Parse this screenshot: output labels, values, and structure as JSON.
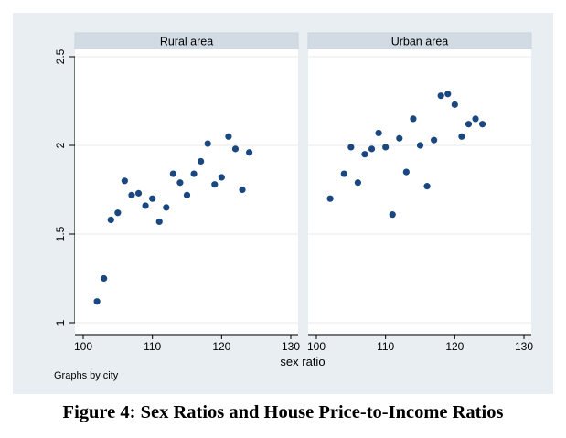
{
  "chart_data": {
    "type": "scatter",
    "xlabel": "sex ratio",
    "note": "Graphs by city",
    "xlim": [
      100,
      130
    ],
    "ylim": [
      1,
      2.5
    ],
    "x_ticks": [
      100,
      110,
      120,
      130
    ],
    "y_ticks": [
      1,
      1.5,
      2,
      2.5
    ],
    "y_tick_labels": [
      "1",
      "1.5",
      "2",
      "2.5"
    ],
    "marker_color": "#1a4780",
    "background_color": "#e9eef2",
    "grid": true,
    "panels": [
      {
        "title": "Rural area",
        "points": [
          {
            "x": 102,
            "y": 1.12
          },
          {
            "x": 103,
            "y": 1.25
          },
          {
            "x": 104,
            "y": 1.58
          },
          {
            "x": 105,
            "y": 1.62
          },
          {
            "x": 106,
            "y": 1.8
          },
          {
            "x": 107,
            "y": 1.72
          },
          {
            "x": 108,
            "y": 1.73
          },
          {
            "x": 109,
            "y": 1.66
          },
          {
            "x": 110,
            "y": 1.7
          },
          {
            "x": 111,
            "y": 1.57
          },
          {
            "x": 112,
            "y": 1.65
          },
          {
            "x": 113,
            "y": 1.84
          },
          {
            "x": 114,
            "y": 1.79
          },
          {
            "x": 115,
            "y": 1.72
          },
          {
            "x": 116,
            "y": 1.84
          },
          {
            "x": 117,
            "y": 1.91
          },
          {
            "x": 118,
            "y": 2.01
          },
          {
            "x": 119,
            "y": 1.78
          },
          {
            "x": 120,
            "y": 1.82
          },
          {
            "x": 121,
            "y": 2.05
          },
          {
            "x": 122,
            "y": 1.98
          },
          {
            "x": 123,
            "y": 1.75
          },
          {
            "x": 124,
            "y": 1.96
          }
        ]
      },
      {
        "title": "Urban area",
        "points": [
          {
            "x": 102,
            "y": 1.7
          },
          {
            "x": 104,
            "y": 1.84
          },
          {
            "x": 105,
            "y": 1.99
          },
          {
            "x": 106,
            "y": 1.79
          },
          {
            "x": 107,
            "y": 1.95
          },
          {
            "x": 108,
            "y": 1.98
          },
          {
            "x": 109,
            "y": 2.07
          },
          {
            "x": 110,
            "y": 1.99
          },
          {
            "x": 111,
            "y": 1.61
          },
          {
            "x": 112,
            "y": 2.04
          },
          {
            "x": 113,
            "y": 1.85
          },
          {
            "x": 114,
            "y": 2.15
          },
          {
            "x": 115,
            "y": 2.0
          },
          {
            "x": 116,
            "y": 1.77
          },
          {
            "x": 117,
            "y": 2.03
          },
          {
            "x": 118,
            "y": 2.28
          },
          {
            "x": 119,
            "y": 2.29
          },
          {
            "x": 120,
            "y": 2.23
          },
          {
            "x": 121,
            "y": 2.05
          },
          {
            "x": 122,
            "y": 2.12
          },
          {
            "x": 123,
            "y": 2.15
          },
          {
            "x": 124,
            "y": 2.12
          }
        ]
      }
    ]
  },
  "caption": "Figure 4:  Sex Ratios and House Price-to-Income Ratios"
}
